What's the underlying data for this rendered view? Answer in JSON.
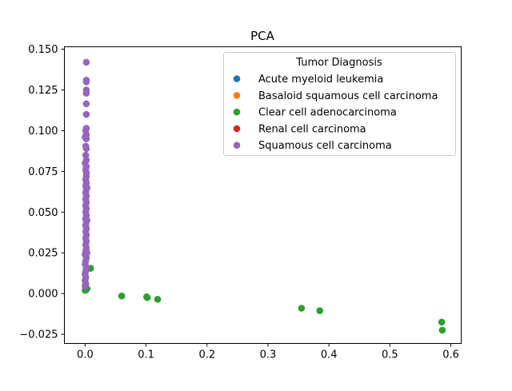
{
  "chart_data": {
    "type": "scatter",
    "title": "PCA",
    "xlabel": "",
    "ylabel": "",
    "xlim": [
      -0.034,
      0.617
    ],
    "ylim": [
      -0.0306,
      0.1515
    ],
    "x_ticks": [
      0.0,
      0.1,
      0.2,
      0.3,
      0.4,
      0.5,
      0.6
    ],
    "x_tick_labels": [
      "0.0",
      "0.1",
      "0.2",
      "0.3",
      "0.4",
      "0.5",
      "0.6"
    ],
    "y_ticks": [
      -0.025,
      0.0,
      0.025,
      0.05,
      0.075,
      0.1,
      0.125,
      0.15
    ],
    "y_tick_labels": [
      "−0.025",
      "0.000",
      "0.025",
      "0.050",
      "0.075",
      "0.100",
      "0.125",
      "0.150"
    ],
    "grid": false,
    "legend": {
      "title": "Tumor Diagnosis",
      "placement": "top-right"
    },
    "series": [
      {
        "name": "Acute myeloid leukemia",
        "color": "#1f77b4",
        "points": [
          [
            0.002,
            0.0025
          ],
          [
            0.003,
            0.003
          ]
        ]
      },
      {
        "name": "Basaloid squamous cell carcinoma",
        "color": "#ff7f0e",
        "points": [
          [
            0.001,
            0.004
          ]
        ]
      },
      {
        "name": "Clear cell adenocarcinoma",
        "color": "#2ca02c",
        "points": [
          [
            0.0,
            0.002
          ],
          [
            0.0015,
            0.0025
          ],
          [
            0.009,
            0.0155
          ],
          [
            0.06,
            -0.0015
          ],
          [
            0.101,
            -0.002
          ],
          [
            0.102,
            -0.0025
          ],
          [
            0.119,
            -0.0035
          ],
          [
            0.355,
            -0.009
          ],
          [
            0.385,
            -0.0105
          ],
          [
            0.585,
            -0.0175
          ],
          [
            0.586,
            -0.0225
          ]
        ]
      },
      {
        "name": "Renal cell carcinoma",
        "color": "#d62728",
        "points": [
          [
            0.0005,
            0.005
          ],
          [
            0.001,
            0.006
          ]
        ]
      },
      {
        "name": "Squamous cell carcinoma",
        "color": "#9467bd",
        "points": [
          [
            0.002,
            0.142
          ],
          [
            0.002,
            0.131
          ],
          [
            0.002,
            0.13
          ],
          [
            0.002,
            0.125
          ],
          [
            0.002,
            0.123
          ],
          [
            0.002,
            0.1165
          ],
          [
            0.002,
            0.11
          ],
          [
            0.002,
            0.1015
          ],
          [
            0.001,
            0.1
          ],
          [
            0.002,
            0.0975
          ],
          [
            0.0,
            0.096
          ],
          [
            0.002,
            0.095
          ],
          [
            0.001,
            0.0905
          ],
          [
            0.002,
            0.089
          ],
          [
            0.001,
            0.085
          ],
          [
            0.002,
            0.082
          ],
          [
            0.0,
            0.08
          ],
          [
            0.002,
            0.078
          ],
          [
            0.001,
            0.076
          ],
          [
            0.002,
            0.074
          ],
          [
            0.002,
            0.072
          ],
          [
            0.001,
            0.07
          ],
          [
            0.002,
            0.068
          ],
          [
            0.001,
            0.066
          ],
          [
            0.002,
            0.064
          ],
          [
            0.001,
            0.062
          ],
          [
            0.002,
            0.06
          ],
          [
            0.001,
            0.058
          ],
          [
            0.002,
            0.056
          ],
          [
            0.001,
            0.054
          ],
          [
            0.002,
            0.052
          ],
          [
            0.001,
            0.05
          ],
          [
            0.002,
            0.048
          ],
          [
            0.001,
            0.046
          ],
          [
            0.002,
            0.044
          ],
          [
            0.001,
            0.042
          ],
          [
            0.002,
            0.04
          ],
          [
            0.001,
            0.038
          ],
          [
            0.002,
            0.036
          ],
          [
            0.001,
            0.034
          ],
          [
            0.002,
            0.032
          ],
          [
            0.001,
            0.03
          ],
          [
            0.002,
            0.028
          ],
          [
            0.001,
            0.026
          ],
          [
            0.0,
            0.024
          ],
          [
            0.002,
            0.022
          ],
          [
            0.001,
            0.02
          ],
          [
            0.0,
            0.018
          ],
          [
            0.002,
            0.016
          ],
          [
            0.001,
            0.014
          ],
          [
            0.0,
            0.012
          ],
          [
            0.001,
            0.01
          ],
          [
            0.0,
            0.008
          ],
          [
            0.001,
            0.006
          ],
          [
            0.0,
            0.0045
          ],
          [
            0.003,
            0.025
          ],
          [
            0.003,
            0.045
          ],
          [
            0.003,
            0.065
          ]
        ]
      }
    ]
  }
}
